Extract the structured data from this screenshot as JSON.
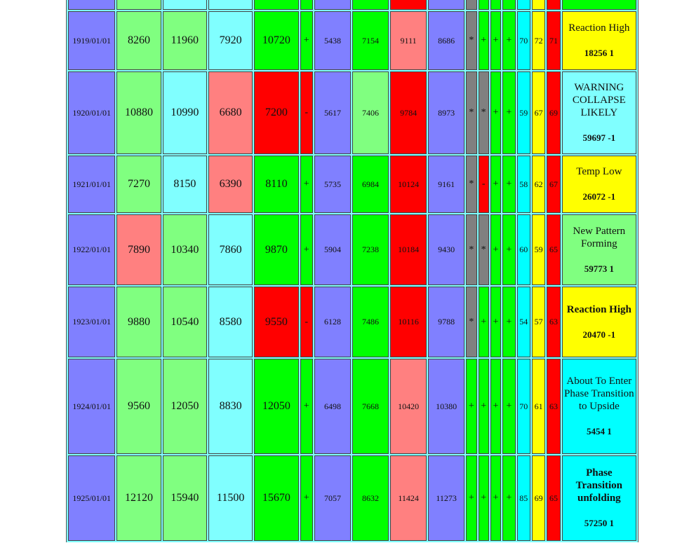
{
  "rows": [
    {
      "date": "",
      "c1": "",
      "c2": "",
      "c3": "",
      "c4": "",
      "s1": "",
      "b1": "",
      "b2": "",
      "b3": "",
      "b4": "",
      "m1": "",
      "m2": "",
      "m3": "",
      "m4": "",
      "n1": "",
      "n2": "",
      "n3": "",
      "note": "",
      "note_num": ""
    },
    {
      "date": "1919/01/01",
      "c1": "8260",
      "c2": "11960",
      "c3": "7920",
      "c4": "10720",
      "s1": "+",
      "b1": "5438",
      "b2": "7154",
      "b3": "9111",
      "b4": "8686",
      "m1": "*",
      "m2": "+",
      "m3": "+",
      "m4": "+",
      "n1": "70",
      "n2": "72",
      "n3": "71",
      "note": "Reaction High",
      "note_num": "18256 1"
    },
    {
      "date": "1920/01/01",
      "c1": "10880",
      "c2": "10990",
      "c3": "6680",
      "c4": "7200",
      "s1": "-",
      "b1": "5617",
      "b2": "7406",
      "b3": "9784",
      "b4": "8973",
      "m1": "*",
      "m2": "*",
      "m3": "+",
      "m4": "+",
      "n1": "59",
      "n2": "67",
      "n3": "69",
      "note": "WARNING COLLAPSE LIKELY",
      "note_num": "59697 -1"
    },
    {
      "date": "1921/01/01",
      "c1": "7270",
      "c2": "8150",
      "c3": "6390",
      "c4": "8110",
      "s1": "+",
      "b1": "5735",
      "b2": "6984",
      "b3": "10124",
      "b4": "9161",
      "m1": "*",
      "m2": "-",
      "m3": "+",
      "m4": "+",
      "n1": "58",
      "n2": "62",
      "n3": "67",
      "note": "Temp Low",
      "note_num": "26072 -1"
    },
    {
      "date": "1922/01/01",
      "c1": "7890",
      "c2": "10340",
      "c3": "7860",
      "c4": "9870",
      "s1": "+",
      "b1": "5904",
      "b2": "7238",
      "b3": "10184",
      "b4": "9430",
      "m1": "*",
      "m2": "*",
      "m3": "+",
      "m4": "+",
      "n1": "60",
      "n2": "59",
      "n3": "65",
      "note": "New Pattern Forming",
      "note_num": "59773 1"
    },
    {
      "date": "1923/01/01",
      "c1": "9880",
      "c2": "10540",
      "c3": "8580",
      "c4": "9550",
      "s1": "-",
      "b1": "6128",
      "b2": "7486",
      "b3": "10116",
      "b4": "9788",
      "m1": "*",
      "m2": "+",
      "m3": "+",
      "m4": "+",
      "n1": "54",
      "n2": "57",
      "n3": "63",
      "note": "Reaction High",
      "note_num": "20470 -1"
    },
    {
      "date": "1924/01/01",
      "c1": "9560",
      "c2": "12050",
      "c3": "8830",
      "c4": "12050",
      "s1": "+",
      "b1": "6498",
      "b2": "7668",
      "b3": "10420",
      "b4": "10380",
      "m1": "+",
      "m2": "+",
      "m3": "+",
      "m4": "+",
      "n1": "70",
      "n2": "61",
      "n3": "63",
      "note": "About To Enter Phase Transition to Upside",
      "note_num": "5454 1"
    },
    {
      "date": "1925/01/01",
      "c1": "12120",
      "c2": "15940",
      "c3": "11500",
      "c4": "15670",
      "s1": "+",
      "b1": "7057",
      "b2": "8632",
      "b3": "11424",
      "b4": "11273",
      "m1": "+",
      "m2": "+",
      "m3": "+",
      "m4": "+",
      "n1": "85",
      "n2": "69",
      "n3": "65",
      "note": "Phase Transition unfolding",
      "note_num": "57250 1"
    }
  ]
}
